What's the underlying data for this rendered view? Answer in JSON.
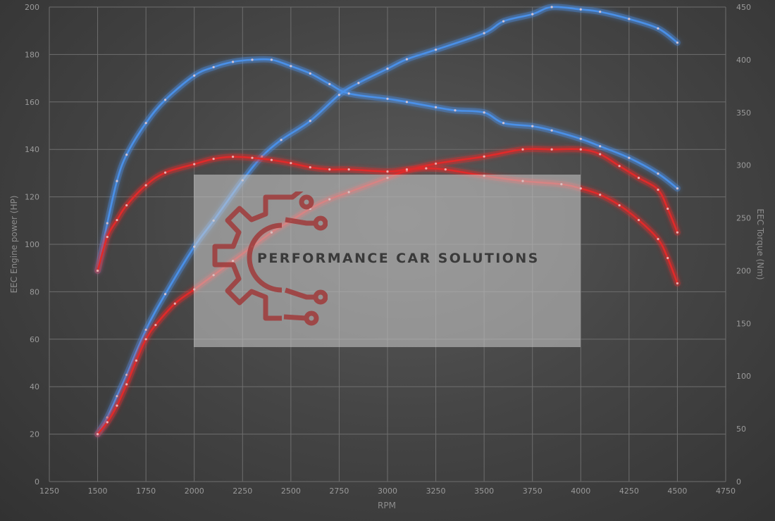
{
  "chart_data": {
    "type": "line",
    "xlabel": "RPM",
    "ylabel_left": "EEC Engine power (HP)",
    "ylabel_right": "EEC Torque (Nm)",
    "xlim": [
      1250,
      4750
    ],
    "ylim_left": [
      0,
      200
    ],
    "ylim_right": [
      0,
      450
    ],
    "x_ticks": [
      1250,
      1500,
      1750,
      2000,
      2250,
      2500,
      2750,
      3000,
      3250,
      3500,
      3750,
      4000,
      4250,
      4500,
      4750
    ],
    "y_ticks_left": [
      0,
      20,
      40,
      60,
      80,
      100,
      120,
      140,
      160,
      180,
      200
    ],
    "y_ticks_right": [
      0,
      50,
      100,
      150,
      200,
      250,
      300,
      350,
      400,
      450
    ],
    "grid": true,
    "series": [
      {
        "axis": "left",
        "color": "#4a90e8",
        "x": [
          1500,
          1550,
          1600,
          1650,
          1750,
          1850,
          2000,
          2100,
          2250,
          2350,
          2450,
          2600,
          2750,
          2850,
          3000,
          3100,
          3250,
          3500,
          3600,
          3750,
          3850,
          4000,
          4100,
          4250,
          4400,
          4500
        ],
        "y": [
          20,
          27,
          36,
          45,
          64,
          79,
          99,
          110,
          127,
          137,
          144,
          152,
          163,
          168,
          174,
          178,
          182,
          189,
          194,
          197,
          200,
          199,
          198,
          195,
          191,
          185
        ]
      },
      {
        "axis": "left",
        "color": "#e02a2a",
        "x": [
          1500,
          1550,
          1600,
          1650,
          1700,
          1750,
          1800,
          1900,
          2000,
          2100,
          2200,
          2300,
          2400,
          2500,
          2600,
          2700,
          2800,
          3000,
          3100,
          3250,
          3500,
          3700,
          3850,
          4000,
          4100,
          4200,
          4300,
          4400,
          4450,
          4500
        ],
        "y": [
          20,
          25,
          32,
          41,
          51,
          60,
          66,
          75,
          81,
          87,
          93,
          99,
          105,
          110,
          115,
          119,
          122,
          128,
          131,
          134,
          137,
          140,
          140,
          140,
          138,
          133,
          128,
          123,
          115,
          105
        ]
      },
      {
        "axis": "right",
        "color": "#4a90e8",
        "x": [
          1500,
          1550,
          1600,
          1650,
          1750,
          1850,
          2000,
          2100,
          2200,
          2300,
          2400,
          2500,
          2600,
          2700,
          2800,
          3000,
          3100,
          3250,
          3350,
          3500,
          3600,
          3750,
          3850,
          4000,
          4100,
          4250,
          4400,
          4500
        ],
        "y": [
          200,
          245,
          285,
          310,
          340,
          362,
          385,
          393,
          398,
          400,
          400,
          394,
          387,
          377,
          368,
          363,
          360,
          355,
          352,
          350,
          340,
          337,
          333,
          325,
          318,
          307,
          292,
          278
        ]
      },
      {
        "axis": "right",
        "color": "#e02a2a",
        "x": [
          1500,
          1550,
          1600,
          1650,
          1750,
          1850,
          2000,
          2100,
          2200,
          2300,
          2400,
          2500,
          2600,
          2700,
          2800,
          3000,
          3100,
          3200,
          3300,
          3500,
          3700,
          3900,
          4000,
          4100,
          4200,
          4300,
          4400,
          4450,
          4500
        ],
        "y": [
          200,
          232,
          248,
          262,
          281,
          293,
          301,
          306,
          308,
          307,
          305,
          302,
          298,
          296,
          296,
          294,
          296,
          297,
          296,
          290,
          285,
          282,
          278,
          272,
          262,
          248,
          230,
          212,
          188
        ]
      }
    ]
  },
  "watermark": {
    "text": "PERFORMANCE CAR SOLUTIONS"
  }
}
